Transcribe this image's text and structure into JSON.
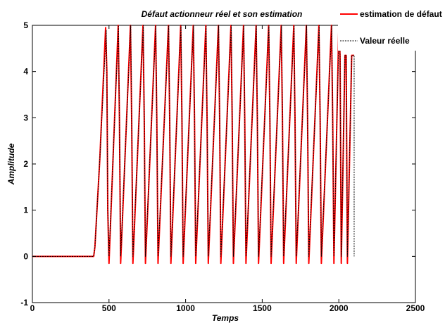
{
  "chart_data": {
    "type": "line",
    "title": "Défaut actionneur réel et son estimation",
    "xlabel": "Temps",
    "ylabel": "Amplitude",
    "xlim": [
      0,
      2500
    ],
    "ylim": [
      -1,
      5
    ],
    "xticks": [
      0,
      500,
      1000,
      1500,
      2000,
      2500
    ],
    "yticks": [
      -1,
      0,
      1,
      2,
      3,
      4,
      5
    ],
    "grid": false,
    "legend_position": "top-right",
    "series": [
      {
        "name": "estimation de défaut",
        "color": "#ff0000",
        "style": "solid",
        "x": [
          0,
          400,
          408,
          440,
          478,
          486,
          492,
          500,
          560,
          568,
          576,
          640,
          648,
          656,
          722,
          730,
          738,
          804,
          812,
          820,
          888,
          896,
          904,
          968,
          976,
          984,
          1050,
          1058,
          1066,
          1132,
          1140,
          1148,
          1214,
          1222,
          1230,
          1296,
          1304,
          1312,
          1378,
          1386,
          1394,
          1460,
          1468,
          1476,
          1542,
          1550,
          1558,
          1624,
          1632,
          1640,
          1706,
          1714,
          1722,
          1788,
          1796,
          1804,
          1870,
          1878,
          1886,
          1952,
          1960,
          1968,
          2000,
          2008,
          2016,
          2040,
          2048,
          2056,
          2084,
          2090,
          2100
        ],
        "y": [
          0,
          0,
          0.2,
          2.1,
          4.95,
          4.0,
          1.0,
          -0.15,
          5,
          3.0,
          -0.15,
          5,
          3.0,
          -0.15,
          5,
          3.0,
          -0.15,
          5,
          3.0,
          -0.15,
          5,
          3.0,
          -0.15,
          5,
          3.0,
          -0.15,
          5,
          3.0,
          -0.15,
          5,
          3.0,
          -0.15,
          5,
          3.0,
          -0.15,
          5,
          3.0,
          -0.15,
          5,
          3.0,
          -0.15,
          5,
          3.0,
          -0.15,
          5,
          3.0,
          -0.15,
          5,
          3.0,
          -0.15,
          5,
          3.0,
          -0.15,
          5,
          3.0,
          -0.15,
          5,
          3.0,
          -0.15,
          5,
          3.0,
          -0.15,
          5,
          4.35,
          -0.15,
          4.35,
          4.35,
          -0.15,
          4.35,
          4.35,
          4.35
        ]
      },
      {
        "name": "Valeur réelle",
        "color": "#000000",
        "style": "dashed",
        "x": [
          0,
          400,
          408,
          440,
          482,
          486,
          492,
          500,
          562,
          568,
          576,
          642,
          648,
          656,
          724,
          730,
          738,
          806,
          812,
          820,
          890,
          896,
          904,
          970,
          976,
          984,
          1052,
          1058,
          1066,
          1134,
          1140,
          1148,
          1216,
          1222,
          1230,
          1298,
          1304,
          1312,
          1380,
          1386,
          1394,
          1462,
          1468,
          1476,
          1544,
          1550,
          1558,
          1626,
          1632,
          1640,
          1708,
          1714,
          1722,
          1790,
          1796,
          1804,
          1872,
          1878,
          1886,
          1954,
          1960,
          1968,
          2002,
          2008,
          2016,
          2040,
          2048,
          2056,
          2084,
          2090,
          2100,
          2100
        ],
        "y": [
          0,
          0,
          0.2,
          2.1,
          4.9,
          4.0,
          1.0,
          0,
          5,
          3.0,
          0,
          5,
          3.0,
          0,
          5,
          3.0,
          0,
          5,
          3.0,
          0,
          5,
          3.0,
          0,
          5,
          3.0,
          0,
          5,
          3.0,
          0,
          5,
          3.0,
          0,
          5,
          3.0,
          0,
          5,
          3.0,
          0,
          5,
          3.0,
          0,
          5,
          3.0,
          0,
          5,
          3.0,
          0,
          5,
          3.0,
          0,
          5,
          3.0,
          0,
          5,
          3.0,
          0,
          5,
          3.0,
          0,
          5,
          3.0,
          0,
          5,
          4.35,
          0,
          4.35,
          4.35,
          0,
          4.35,
          4.35,
          4.35,
          0
        ]
      }
    ]
  }
}
